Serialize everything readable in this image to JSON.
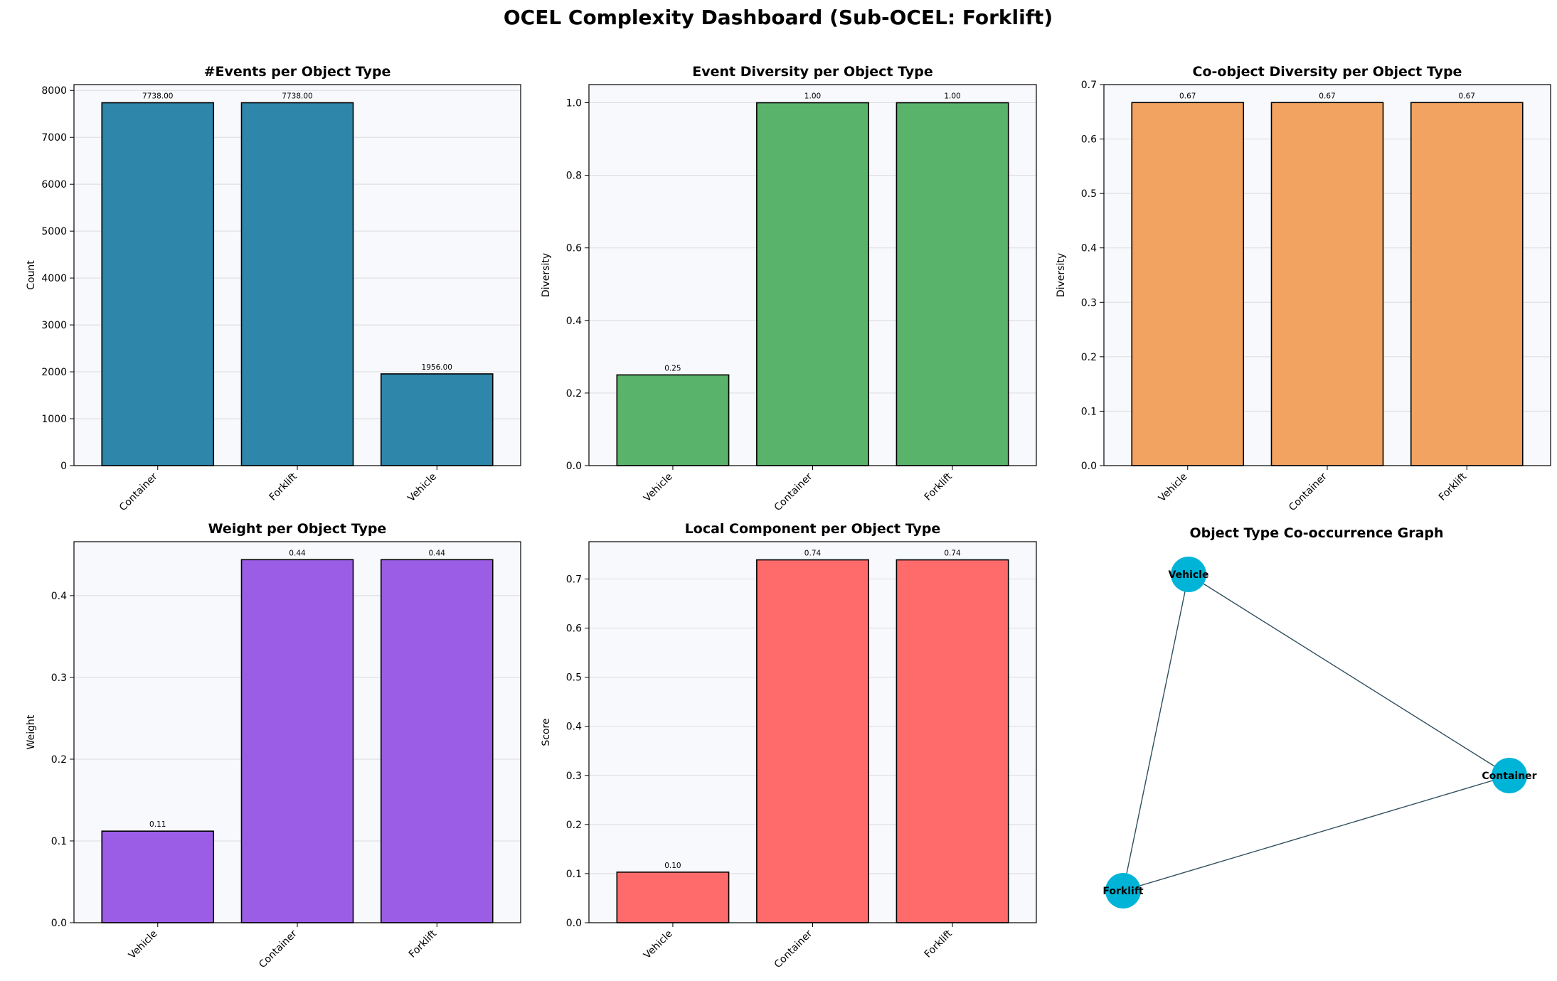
{
  "dashboard": {
    "title": "OCEL Complexity Dashboard (Sub-OCEL: Forklift)"
  },
  "chart_data": [
    {
      "id": "events",
      "type": "bar",
      "title": "#Events per Object Type",
      "xlabel": "",
      "ylabel": "Count",
      "categories": [
        "Container",
        "Forklift",
        "Vehicle"
      ],
      "values": [
        7738,
        7738,
        1956
      ],
      "labels": [
        "7738.00",
        "7738.00",
        "1956.00"
      ],
      "ylim": [
        0,
        8125
      ],
      "yticks": [
        0,
        1000,
        2000,
        3000,
        4000,
        5000,
        6000,
        7000,
        8000
      ],
      "ytick_labels": [
        "0",
        "1000",
        "2000",
        "3000",
        "4000",
        "5000",
        "6000",
        "7000",
        "8000"
      ],
      "color": "#2e86ab",
      "grid": true
    },
    {
      "id": "event_diversity",
      "type": "bar",
      "title": "Event Diversity per Object Type",
      "xlabel": "",
      "ylabel": "Diversity",
      "categories": [
        "Vehicle",
        "Container",
        "Forklift"
      ],
      "values": [
        0.25,
        1.0,
        1.0
      ],
      "labels": [
        "0.25",
        "1.00",
        "1.00"
      ],
      "ylim": [
        0,
        1.05
      ],
      "yticks": [
        0,
        0.2,
        0.4,
        0.6,
        0.8,
        1.0
      ],
      "ytick_labels": [
        "0.0",
        "0.2",
        "0.4",
        "0.6",
        "0.8",
        "1.0"
      ],
      "color": "#59b36a",
      "grid": true
    },
    {
      "id": "coobject_diversity",
      "type": "bar",
      "title": "Co-object Diversity per Object Type",
      "xlabel": "",
      "ylabel": "Diversity",
      "categories": [
        "Vehicle",
        "Container",
        "Forklift"
      ],
      "values": [
        0.667,
        0.667,
        0.667
      ],
      "labels": [
        "0.67",
        "0.67",
        "0.67"
      ],
      "ylim": [
        0,
        0.7
      ],
      "yticks": [
        0,
        0.1,
        0.2,
        0.3,
        0.4,
        0.5,
        0.6,
        0.7
      ],
      "ytick_labels": [
        "0.0",
        "0.1",
        "0.2",
        "0.3",
        "0.4",
        "0.5",
        "0.6",
        "0.7"
      ],
      "color": "#f2a261",
      "grid": true
    },
    {
      "id": "weight",
      "type": "bar",
      "title": "Weight per Object Type",
      "xlabel": "",
      "ylabel": "Weight",
      "categories": [
        "Vehicle",
        "Container",
        "Forklift"
      ],
      "values": [
        0.112,
        0.444,
        0.444
      ],
      "labels": [
        "0.11",
        "0.44",
        "0.44"
      ],
      "ylim": [
        0,
        0.466
      ],
      "yticks": [
        0,
        0.1,
        0.2,
        0.3,
        0.4
      ],
      "ytick_labels": [
        "0.0",
        "0.1",
        "0.2",
        "0.3",
        "0.4"
      ],
      "color": "#9b5de5",
      "grid": true
    },
    {
      "id": "local_component",
      "type": "bar",
      "title": "Local Component per Object Type",
      "xlabel": "",
      "ylabel": "Score",
      "categories": [
        "Vehicle",
        "Container",
        "Forklift"
      ],
      "values": [
        0.103,
        0.739,
        0.739
      ],
      "labels": [
        "0.10",
        "0.74",
        "0.74"
      ],
      "ylim": [
        0,
        0.776
      ],
      "yticks": [
        0,
        0.1,
        0.2,
        0.3,
        0.4,
        0.5,
        0.6,
        0.7
      ],
      "ytick_labels": [
        "0.0",
        "0.1",
        "0.2",
        "0.3",
        "0.4",
        "0.5",
        "0.6",
        "0.7"
      ],
      "color": "#ff6b6b",
      "grid": true
    }
  ],
  "graph": {
    "title": "Object Type Co-occurrence Graph",
    "nodes": [
      {
        "id": "Vehicle",
        "label": "Vehicle"
      },
      {
        "id": "Container",
        "label": "Container"
      },
      {
        "id": "Forklift",
        "label": "Forklift"
      }
    ],
    "edges": [
      {
        "source": "Vehicle",
        "target": "Container"
      },
      {
        "source": "Vehicle",
        "target": "Forklift"
      },
      {
        "source": "Container",
        "target": "Forklift"
      }
    ],
    "node_color": "#00b4d8",
    "edge_color": "#2f4f5f"
  }
}
